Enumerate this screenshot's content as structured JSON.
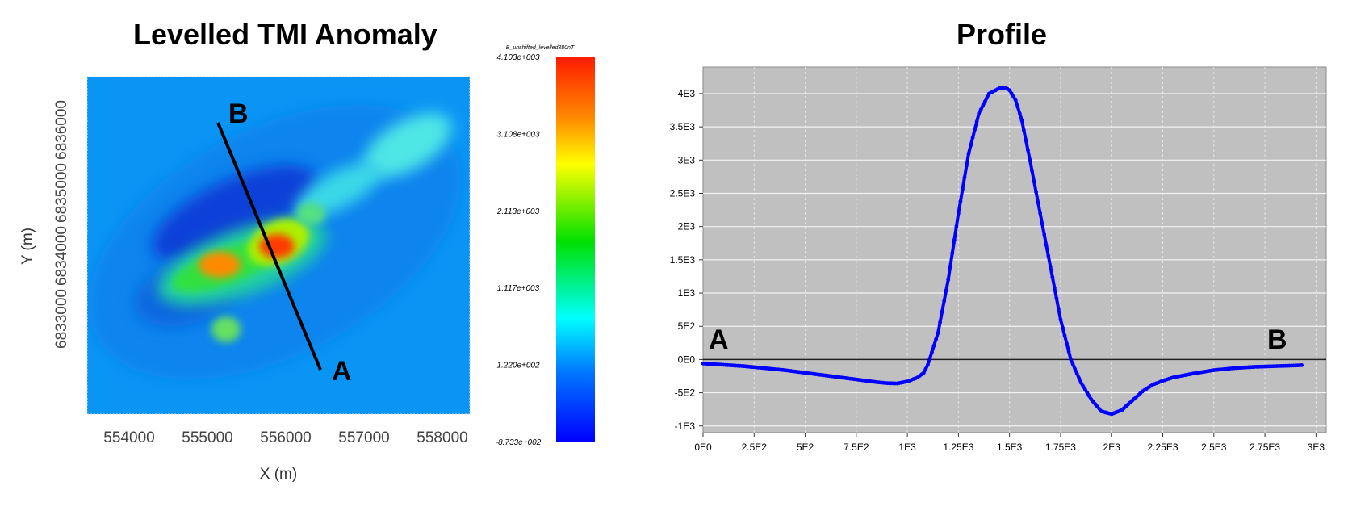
{
  "map": {
    "title": "Levelled TMI Anomaly",
    "xlabel": "X (m)",
    "ylabel": "Y (m)",
    "x_ticks": [
      "554000",
      "555000",
      "556000",
      "557000",
      "558000"
    ],
    "y_ticks": [
      "6833000",
      "6834000",
      "6835000",
      "6836000"
    ],
    "profile_start_label": "A",
    "profile_end_label": "B",
    "colorbar": {
      "title": "B_unshifted_levelled380nT",
      "labels": [
        "4.103e+003",
        "3.108e+003",
        "2.113e+003",
        "1.117e+003",
        "1.220e+002",
        "-8.733e+002"
      ],
      "colors": [
        "#ff1a00",
        "#ff8a00",
        "#ffff00",
        "#00e000",
        "#00ffff",
        "#0077ff",
        "#0000ff"
      ]
    },
    "line_color": "#000000"
  },
  "chart_data": {
    "type": "line",
    "title": "Profile",
    "xlabel": "",
    "ylabel": "",
    "xlim": [
      0,
      3050
    ],
    "ylim": [
      -1100,
      4400
    ],
    "x_tick_labels": [
      "0E0",
      "2.5E2",
      "5E2",
      "7.5E2",
      "1E3",
      "1.25E3",
      "1.5E3",
      "1.75E3",
      "2E3",
      "2.25E3",
      "2.5E3",
      "2.75E3",
      "3E3"
    ],
    "y_tick_labels": [
      "4E3",
      "3.5E3",
      "3E3",
      "2.5E3",
      "2E3",
      "1.5E3",
      "1E3",
      "5E2",
      "0E0",
      "-5E2",
      "-1E3"
    ],
    "annotations": [
      "A",
      "B"
    ],
    "grid": true,
    "series": [
      {
        "color": "#0000ff",
        "x": [
          0,
          100,
          200,
          300,
          400,
          500,
          600,
          700,
          800,
          850,
          900,
          950,
          1000,
          1050,
          1080,
          1100,
          1150,
          1200,
          1250,
          1300,
          1350,
          1400,
          1450,
          1480,
          1500,
          1530,
          1560,
          1600,
          1650,
          1700,
          1750,
          1800,
          1850,
          1900,
          1950,
          2000,
          2050,
          2100,
          2150,
          2200,
          2250,
          2300,
          2400,
          2500,
          2600,
          2700,
          2800,
          2900,
          2930
        ],
        "y": [
          -60,
          -80,
          -100,
          -130,
          -160,
          -200,
          -240,
          -280,
          -320,
          -340,
          -355,
          -360,
          -330,
          -270,
          -200,
          -80,
          400,
          1200,
          2200,
          3100,
          3700,
          4000,
          4080,
          4090,
          4050,
          3900,
          3600,
          3000,
          2200,
          1400,
          600,
          0,
          -350,
          -600,
          -780,
          -820,
          -760,
          -620,
          -480,
          -380,
          -320,
          -270,
          -210,
          -160,
          -130,
          -110,
          -100,
          -90,
          -85
        ]
      }
    ]
  }
}
